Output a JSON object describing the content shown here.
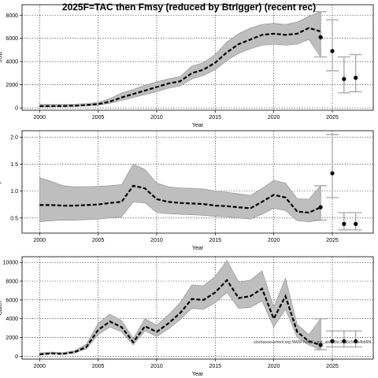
{
  "title": "2025F=TAC then Fmsy (reduced by Btrigger) (recent rec)",
  "watermark": "stockassessment.org NWW-NSSK_and_ab8a1bc17a6c5cda4bb6fd...",
  "colors": {
    "band": "#bebebe",
    "band_edge": "#8c8c8c",
    "line": "#000000",
    "errorbar": "#a6a6a6",
    "grid": "#000000"
  },
  "chart_data": [
    {
      "type": "line",
      "panel": "SSB",
      "xlabel": "Year",
      "ylabel": "SSB",
      "xlim": [
        1998.5,
        2028.5
      ],
      "ylim": [
        -200,
        8900
      ],
      "x_ticks": [
        2000,
        2005,
        2010,
        2015,
        2020,
        2025
      ],
      "y_ticks": [
        0,
        2000,
        4000,
        6000,
        8000
      ],
      "y_tick_labels": [
        "0",
        "2000",
        "4000",
        "6000",
        "8000"
      ],
      "grid": true,
      "series": [
        {
          "x": [
            2000,
            2001,
            2002,
            2003,
            2004,
            2005,
            2006,
            2007,
            2008,
            2009,
            2010,
            2011,
            2012,
            2013,
            2014,
            2015,
            2016,
            2017,
            2018,
            2019,
            2020,
            2021,
            2022,
            2023,
            2024
          ],
          "values": [
            150,
            160,
            170,
            190,
            250,
            330,
            550,
            900,
            1200,
            1500,
            1800,
            2100,
            2300,
            3000,
            3300,
            3900,
            4800,
            5500,
            5900,
            6300,
            6400,
            6300,
            6400,
            6900,
            6600
          ],
          "low": [
            90,
            100,
            110,
            130,
            180,
            250,
            400,
            650,
            900,
            1150,
            1400,
            1700,
            1900,
            2500,
            2800,
            3300,
            4100,
            4700,
            5100,
            5400,
            5500,
            5400,
            5500,
            5900,
            4400
          ],
          "high": [
            300,
            300,
            300,
            320,
            380,
            480,
            800,
            1300,
            1600,
            1950,
            2250,
            2500,
            2700,
            3600,
            3900,
            4600,
            5700,
            6400,
            6900,
            7200,
            7300,
            7200,
            7400,
            7900,
            8300
          ],
          "end_point": 6100
        }
      ],
      "projection": [
        {
          "x": 2025,
          "value": 4900,
          "low": 3200,
          "high": 7600
        },
        {
          "x": 2026,
          "value": 2500,
          "low": 1300,
          "high": 4400
        },
        {
          "x": 2027,
          "value": 2600,
          "low": 1400,
          "high": 4600
        }
      ]
    },
    {
      "type": "line",
      "panel": "F",
      "xlabel": "Year",
      "ylabel": "F",
      "xlim": [
        1998.5,
        2028.5
      ],
      "ylim": [
        0.22,
        2.12
      ],
      "x_ticks": [
        2000,
        2005,
        2010,
        2015,
        2020,
        2025
      ],
      "y_ticks": [
        0.5,
        1.0,
        1.5,
        2.0
      ],
      "y_tick_labels": [
        "0.5",
        "1.0",
        "1.5",
        "2.0"
      ],
      "grid": true,
      "series": [
        {
          "x": [
            2000,
            2001,
            2002,
            2003,
            2004,
            2005,
            2006,
            2007,
            2008,
            2009,
            2010,
            2011,
            2012,
            2013,
            2014,
            2015,
            2016,
            2017,
            2018,
            2019,
            2020,
            2021,
            2022,
            2023,
            2024
          ],
          "values": [
            0.74,
            0.74,
            0.73,
            0.73,
            0.74,
            0.75,
            0.78,
            0.8,
            1.1,
            1.05,
            0.85,
            0.8,
            0.78,
            0.77,
            0.76,
            0.73,
            0.72,
            0.7,
            0.68,
            0.8,
            0.93,
            0.88,
            0.62,
            0.6,
            0.7
          ],
          "low": [
            0.43,
            0.45,
            0.46,
            0.46,
            0.47,
            0.48,
            0.5,
            0.52,
            0.8,
            0.78,
            0.6,
            0.58,
            0.57,
            0.56,
            0.55,
            0.53,
            0.52,
            0.5,
            0.48,
            0.57,
            0.68,
            0.64,
            0.45,
            0.43,
            0.46
          ],
          "high": [
            1.25,
            1.18,
            1.1,
            1.08,
            1.08,
            1.09,
            1.1,
            1.12,
            1.5,
            1.4,
            1.15,
            1.08,
            1.06,
            1.05,
            1.04,
            1.0,
            0.98,
            0.95,
            0.92,
            1.05,
            1.2,
            1.15,
            0.86,
            0.85,
            1.1
          ]
        }
      ],
      "projection": [
        {
          "x": 2025,
          "value": 1.33,
          "low": 0.88,
          "high": 2.05
        },
        {
          "x": 2026,
          "value": 0.39,
          "low": 0.28,
          "high": 0.6
        },
        {
          "x": 2027,
          "value": 0.39,
          "low": 0.28,
          "high": 0.6
        }
      ]
    },
    {
      "type": "line",
      "panel": "Catch",
      "xlabel": "Year",
      "ylabel": "Catch",
      "xlim": [
        1998.5,
        2028.5
      ],
      "ylim": [
        -300,
        10600
      ],
      "x_ticks": [
        2000,
        2005,
        2010,
        2015,
        2020,
        2025
      ],
      "y_ticks": [
        0,
        2000,
        4000,
        6000,
        8000,
        10000
      ],
      "y_tick_labels": [
        "0",
        "2000",
        "4000",
        "6000",
        "8000",
        "10000"
      ],
      "grid": true,
      "series": [
        {
          "x": [
            2000,
            2001,
            2002,
            2003,
            2004,
            2005,
            2006,
            2007,
            2008,
            2009,
            2010,
            2011,
            2012,
            2013,
            2014,
            2015,
            2016,
            2017,
            2018,
            2019,
            2020,
            2021,
            2022,
            2023,
            2024
          ],
          "values": [
            200,
            300,
            250,
            450,
            1000,
            2800,
            3700,
            3100,
            1500,
            3200,
            2600,
            3500,
            4600,
            6100,
            6000,
            6800,
            8100,
            6200,
            6400,
            7200,
            4000,
            6400,
            2600,
            1600,
            1200
          ],
          "low": [
            150,
            250,
            200,
            350,
            800,
            2300,
            3100,
            2600,
            1200,
            2700,
            2100,
            2900,
            3900,
            5100,
            5000,
            5700,
            6800,
            5100,
            5200,
            5900,
            3100,
            5000,
            2000,
            1200,
            700
          ],
          "high": [
            350,
            450,
            400,
            600,
            1300,
            3500,
            4500,
            3800,
            1900,
            4000,
            3300,
            4400,
            5700,
            7600,
            7500,
            8500,
            10200,
            7900,
            8100,
            9100,
            5200,
            8300,
            3400,
            2300,
            4000
          ]
        }
      ],
      "projection": [
        {
          "x": 2025,
          "value": 1600,
          "low": 1000,
          "high": 2700
        },
        {
          "x": 2026,
          "value": 1600,
          "low": 1000,
          "high": 2700
        },
        {
          "x": 2027,
          "value": 1600,
          "low": 1000,
          "high": 2700
        }
      ]
    }
  ]
}
